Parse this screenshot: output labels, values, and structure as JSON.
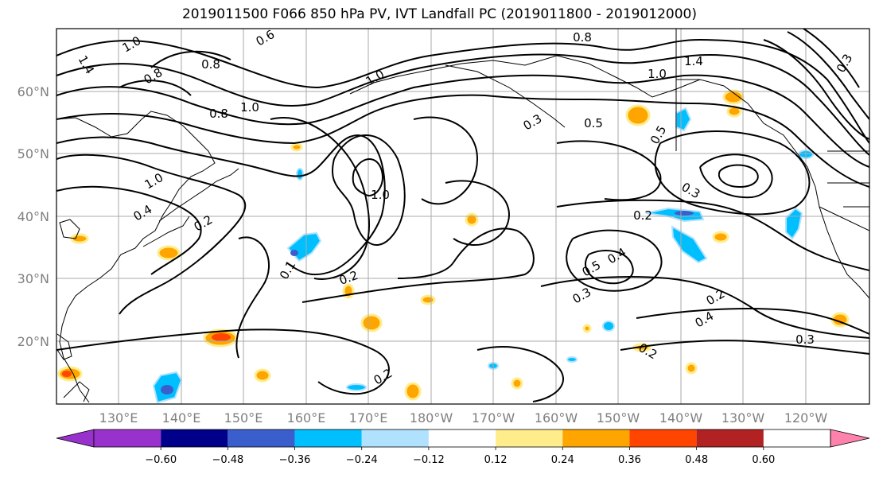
{
  "title": "2019011500 F066 850 hPa PV, IVT Landfall PC (2019011800 - 2019012000)",
  "lat_labels": [
    "20°N",
    "30°N",
    "40°N",
    "50°N",
    "60°N"
  ],
  "lon_labels": [
    "130°E",
    "140°E",
    "150°E",
    "160°E",
    "170°E",
    "180°W",
    "170°W",
    "160°W",
    "150°W",
    "140°W",
    "130°W",
    "120°W"
  ],
  "contour_labels": [
    "1.4",
    "1.0",
    "0.8",
    "0.6",
    "0.8",
    "1.0",
    "0.8",
    "1.0",
    "0.4",
    "0.2",
    "0.8",
    "1.4",
    "1.0",
    "0.5",
    "0.3",
    "1.0",
    "1.0",
    "0.2",
    "0.3",
    "0.5",
    "0.4",
    "0.3",
    "0.2",
    "0.4",
    "0.3",
    "0.2",
    "0.2",
    "0.2",
    "0.1",
    "0.5",
    "0.3"
  ],
  "colorbar": {
    "ticks": [
      "−0.60",
      "−0.48",
      "−0.36",
      "−0.24",
      "−0.12",
      "0.12",
      "0.24",
      "0.36",
      "0.48",
      "0.60"
    ],
    "colors": [
      "#9932cc",
      "#00008b",
      "#3a5fcd",
      "#00bfff",
      "#b0e2ff",
      "#ffffff",
      "#ffec8b",
      "#ffa500",
      "#ff4500",
      "#b22222",
      "#ff82ab"
    ]
  }
}
